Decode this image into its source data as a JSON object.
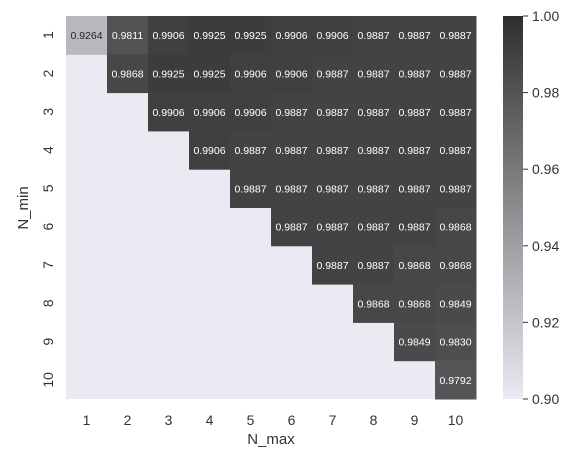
{
  "chart_data": {
    "type": "heatmap",
    "xlabel": "N_max",
    "ylabel": "N_min",
    "x_categories": [
      "1",
      "2",
      "3",
      "4",
      "5",
      "6",
      "7",
      "8",
      "9",
      "10"
    ],
    "y_categories": [
      "1",
      "2",
      "3",
      "4",
      "5",
      "6",
      "7",
      "8",
      "9",
      "10"
    ],
    "values": [
      [
        "0.9264",
        "0.9811",
        "0.9906",
        "0.9925",
        "0.9925",
        "0.9906",
        "0.9906",
        "0.9887",
        "0.9887",
        "0.9887"
      ],
      [
        null,
        "0.9868",
        "0.9925",
        "0.9925",
        "0.9906",
        "0.9906",
        "0.9887",
        "0.9887",
        "0.9887",
        "0.9887"
      ],
      [
        null,
        null,
        "0.9906",
        "0.9906",
        "0.9906",
        "0.9887",
        "0.9887",
        "0.9887",
        "0.9887",
        "0.9887"
      ],
      [
        null,
        null,
        null,
        "0.9906",
        "0.9887",
        "0.9887",
        "0.9887",
        "0.9887",
        "0.9887",
        "0.9887"
      ],
      [
        null,
        null,
        null,
        null,
        "0.9887",
        "0.9887",
        "0.9887",
        "0.9887",
        "0.9887",
        "0.9887"
      ],
      [
        null,
        null,
        null,
        null,
        null,
        "0.9887",
        "0.9887",
        "0.9887",
        "0.9887",
        "0.9868"
      ],
      [
        null,
        null,
        null,
        null,
        null,
        null,
        "0.9887",
        "0.9887",
        "0.9868",
        "0.9868"
      ],
      [
        null,
        null,
        null,
        null,
        null,
        null,
        null,
        "0.9868",
        "0.9868",
        "0.9849"
      ],
      [
        null,
        null,
        null,
        null,
        null,
        null,
        null,
        null,
        "0.9849",
        "0.9830"
      ],
      [
        null,
        null,
        null,
        null,
        null,
        null,
        null,
        null,
        null,
        "0.9792"
      ]
    ],
    "colorbar": {
      "range": [
        0.9,
        1.0
      ],
      "ticks": [
        "0.90",
        "0.92",
        "0.94",
        "0.96",
        "0.98",
        "1.00"
      ]
    },
    "colors": {
      "low": "#eaeaf2",
      "high": "#2e2e2e",
      "masked": "#eaeaf2"
    },
    "grid": false,
    "legend": "colorbar-right"
  }
}
